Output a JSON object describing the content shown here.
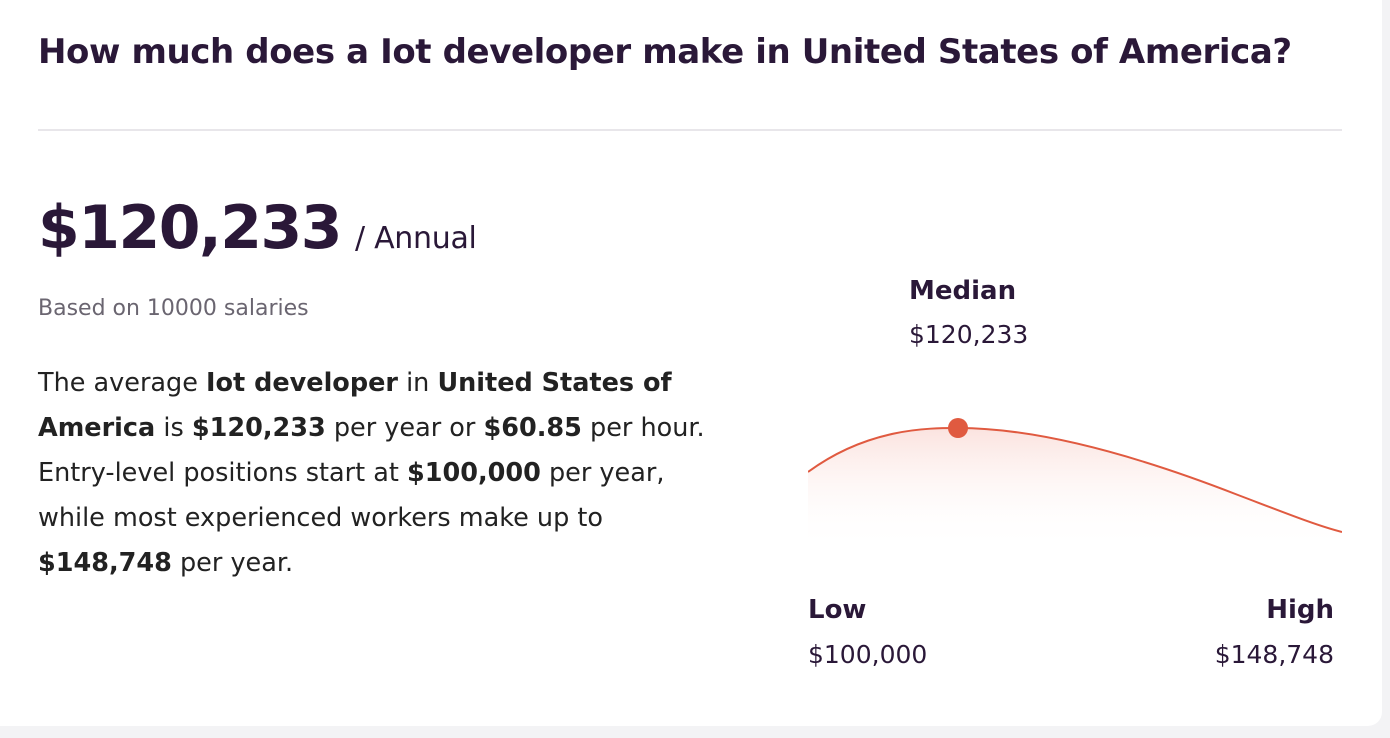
{
  "header": {
    "title": "How much does a Iot developer make in United States of America?"
  },
  "salary": {
    "amount": "$120,233",
    "period": "/ Annual",
    "based_on": "Based on 10000 salaries"
  },
  "description": {
    "t1": "The average ",
    "job_title": "Iot developer",
    "t2": " in ",
    "country": "United States of America",
    "t3": " is ",
    "annual": "$120,233",
    "t4": " per year or ",
    "hourly": "$60.85",
    "t5": " per hour. Entry-level positions start at ",
    "entry": "$100,000",
    "t6": " per year, while most experienced workers make up to ",
    "top": "$148,748",
    "t7": " per year."
  },
  "distribution": {
    "median_label": "Median",
    "median_value": "$120,233",
    "low_label": "Low",
    "low_value": "$100,000",
    "high_label": "High",
    "high_value": "$148,748",
    "curve_color": "#e05a40",
    "fill_color": "#fbe3df"
  }
}
